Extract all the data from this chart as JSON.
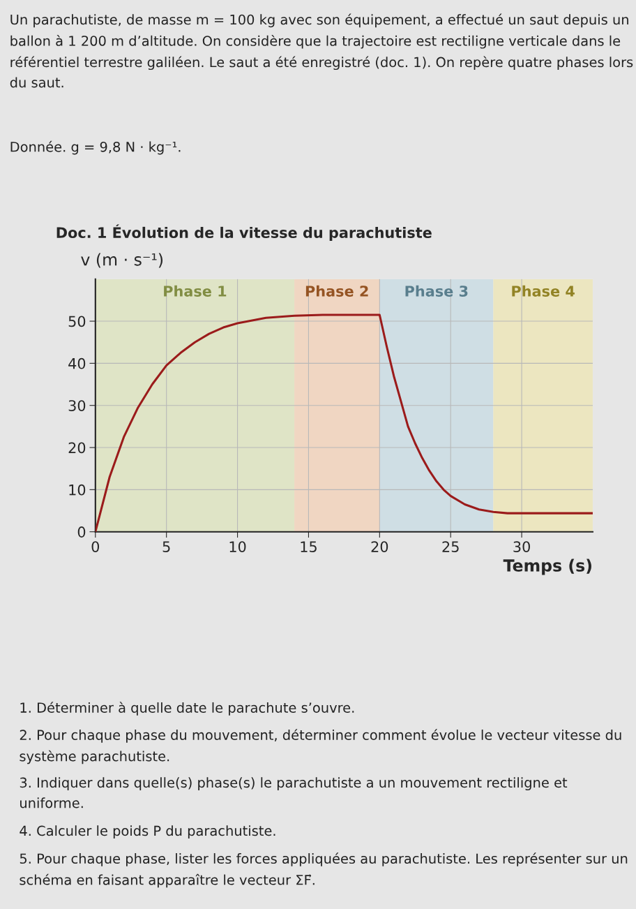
{
  "chart_data": {
    "type": "line",
    "title": "Doc. 1 Évolution de la vitesse du parachutiste",
    "xlabel": "Temps (s)",
    "ylabel": "v (m · s⁻¹)",
    "x": [
      0,
      1,
      2,
      3,
      4,
      5,
      6,
      7,
      8,
      9,
      10,
      12,
      14,
      16,
      20,
      20.5,
      21,
      21.5,
      22,
      22.5,
      23,
      23.5,
      24,
      24.5,
      25,
      26,
      27,
      28,
      29,
      35
    ],
    "series": [
      {
        "color": "#9b1b1b",
        "values": [
          0,
          13,
          22.5,
          29.5,
          35,
          39.5,
          42.5,
          45,
          47,
          48.5,
          49.5,
          50.8,
          51.3,
          51.5,
          51.5,
          44,
          37,
          31,
          25,
          21,
          17.5,
          14.5,
          12,
          10,
          8.5,
          6.5,
          5.3,
          4.7,
          4.4,
          4.4
        ]
      }
    ],
    "xlim": [
      0,
      35
    ],
    "ylim": [
      0,
      60
    ],
    "xticks": [
      0,
      5,
      10,
      15,
      20,
      25,
      30
    ],
    "yticks": [
      0,
      10,
      20,
      30,
      40,
      50
    ],
    "grid": true,
    "marker": "none",
    "line_style": "solid",
    "bands": [
      {
        "axis": "x",
        "from": 0,
        "to": 14,
        "label": "Phase 1",
        "color": "#dfe4c6"
      },
      {
        "axis": "x",
        "from": 14,
        "to": 20,
        "label": "Phase 2",
        "color": "#f0d6c2"
      },
      {
        "axis": "x",
        "from": 20,
        "to": 28,
        "label": "Phase 3",
        "color": "#cfdee4"
      },
      {
        "axis": "x",
        "from": 28,
        "to": 35,
        "label": "Phase 4",
        "color": "#ece6c0"
      }
    ],
    "annotations": [
      "Un parachutiste, de masse m = 100 kg avec son équipement, a effectué un saut depuis un ballon à 1 200 m d’altitude. On considère que la trajectoire est rectiligne verticale dans le référentiel terrestre galiléen. Le saut a été enregistré (doc. 1). On repère quatre phases lors du saut.",
      "Donnée. g = 9,8 N · kg⁻¹.",
      "1. Déterminer à quelle date le parachute s’ouvre.",
      "2. Pour chaque phase du mouvement, déterminer comment évolue le vecteur vitesse du système parachutiste.",
      "3. Indiquer dans quelle(s) phase(s) le parachutiste a un mouvement rectiligne et uniforme.",
      "4. Calculer le poids P du parachutiste.",
      "5. Pour chaque phase, lister les forces appliquées au parachutiste. Les représenter sur un schéma en faisant apparaître le vecteur ΣF⃗."
    ]
  }
}
